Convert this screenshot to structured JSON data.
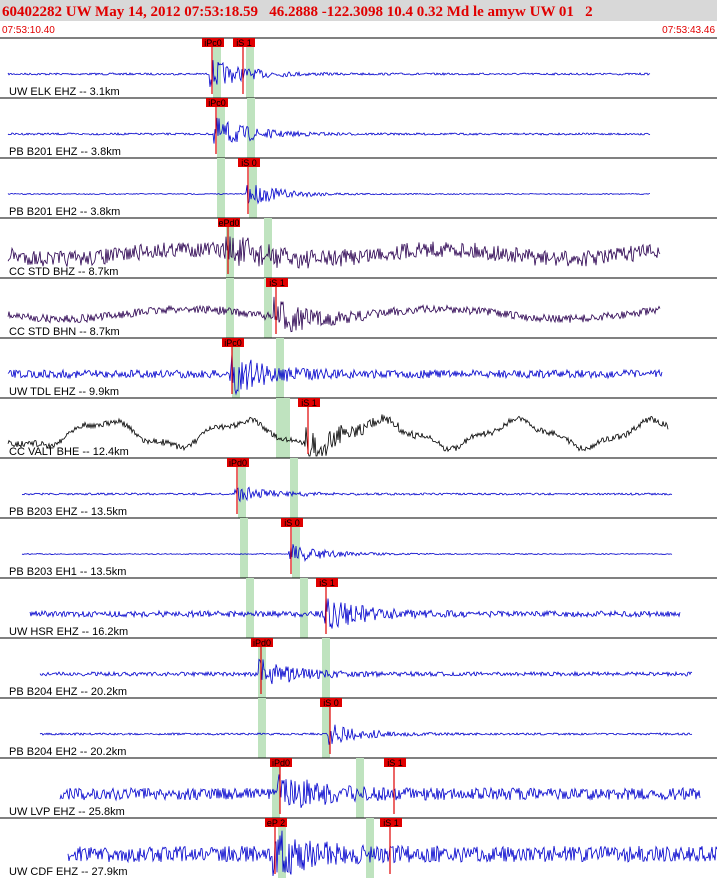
{
  "header": {
    "title": "60402282 UW May 14, 2012 07:53:18.59   46.2888 -122.3098 10.4 0.32 Md le amyw UW 01   2",
    "start_time": "07:53:10.40",
    "end_time": "07:53:43.46"
  },
  "traces": [
    {
      "label": "UW ELK EHZ -- 3.1km",
      "picks": [
        "iPc0",
        "iS 1"
      ]
    },
    {
      "label": "PB B201 EHZ -- 3.8km",
      "picks": [
        "iPc0"
      ]
    },
    {
      "label": "PB B201 EH2 -- 3.8km",
      "picks": [
        "iS 0"
      ]
    },
    {
      "label": "CC STD BHZ -- 8.7km",
      "picks": [
        "ePd0"
      ]
    },
    {
      "label": "CC STD BHN -- 8.7km",
      "picks": [
        "iS 1"
      ]
    },
    {
      "label": "UW TDL EHZ -- 9.9km",
      "picks": [
        "iPc0"
      ]
    },
    {
      "label": "CC VALT BHE -- 12.4km",
      "picks": [
        "iS 1"
      ]
    },
    {
      "label": "PB B203 EHZ -- 13.5km",
      "picks": [
        "iPd0"
      ]
    },
    {
      "label": "PB B203 EH1 -- 13.5km",
      "picks": [
        "iS 0"
      ]
    },
    {
      "label": "UW HSR EHZ -- 16.2km",
      "picks": [
        "iS 1"
      ]
    },
    {
      "label": "PB B204 EHZ -- 20.2km",
      "picks": [
        "iPd0"
      ]
    },
    {
      "label": "PB B204 EH2 -- 20.2km",
      "picks": [
        "iS 0"
      ]
    },
    {
      "label": "UW LVP EHZ -- 25.8km",
      "picks": [
        "iPd0",
        "iS 1"
      ]
    },
    {
      "label": "UW CDF EHZ -- 27.9km",
      "picks": [
        "eP 2",
        "iS 1"
      ]
    }
  ]
}
